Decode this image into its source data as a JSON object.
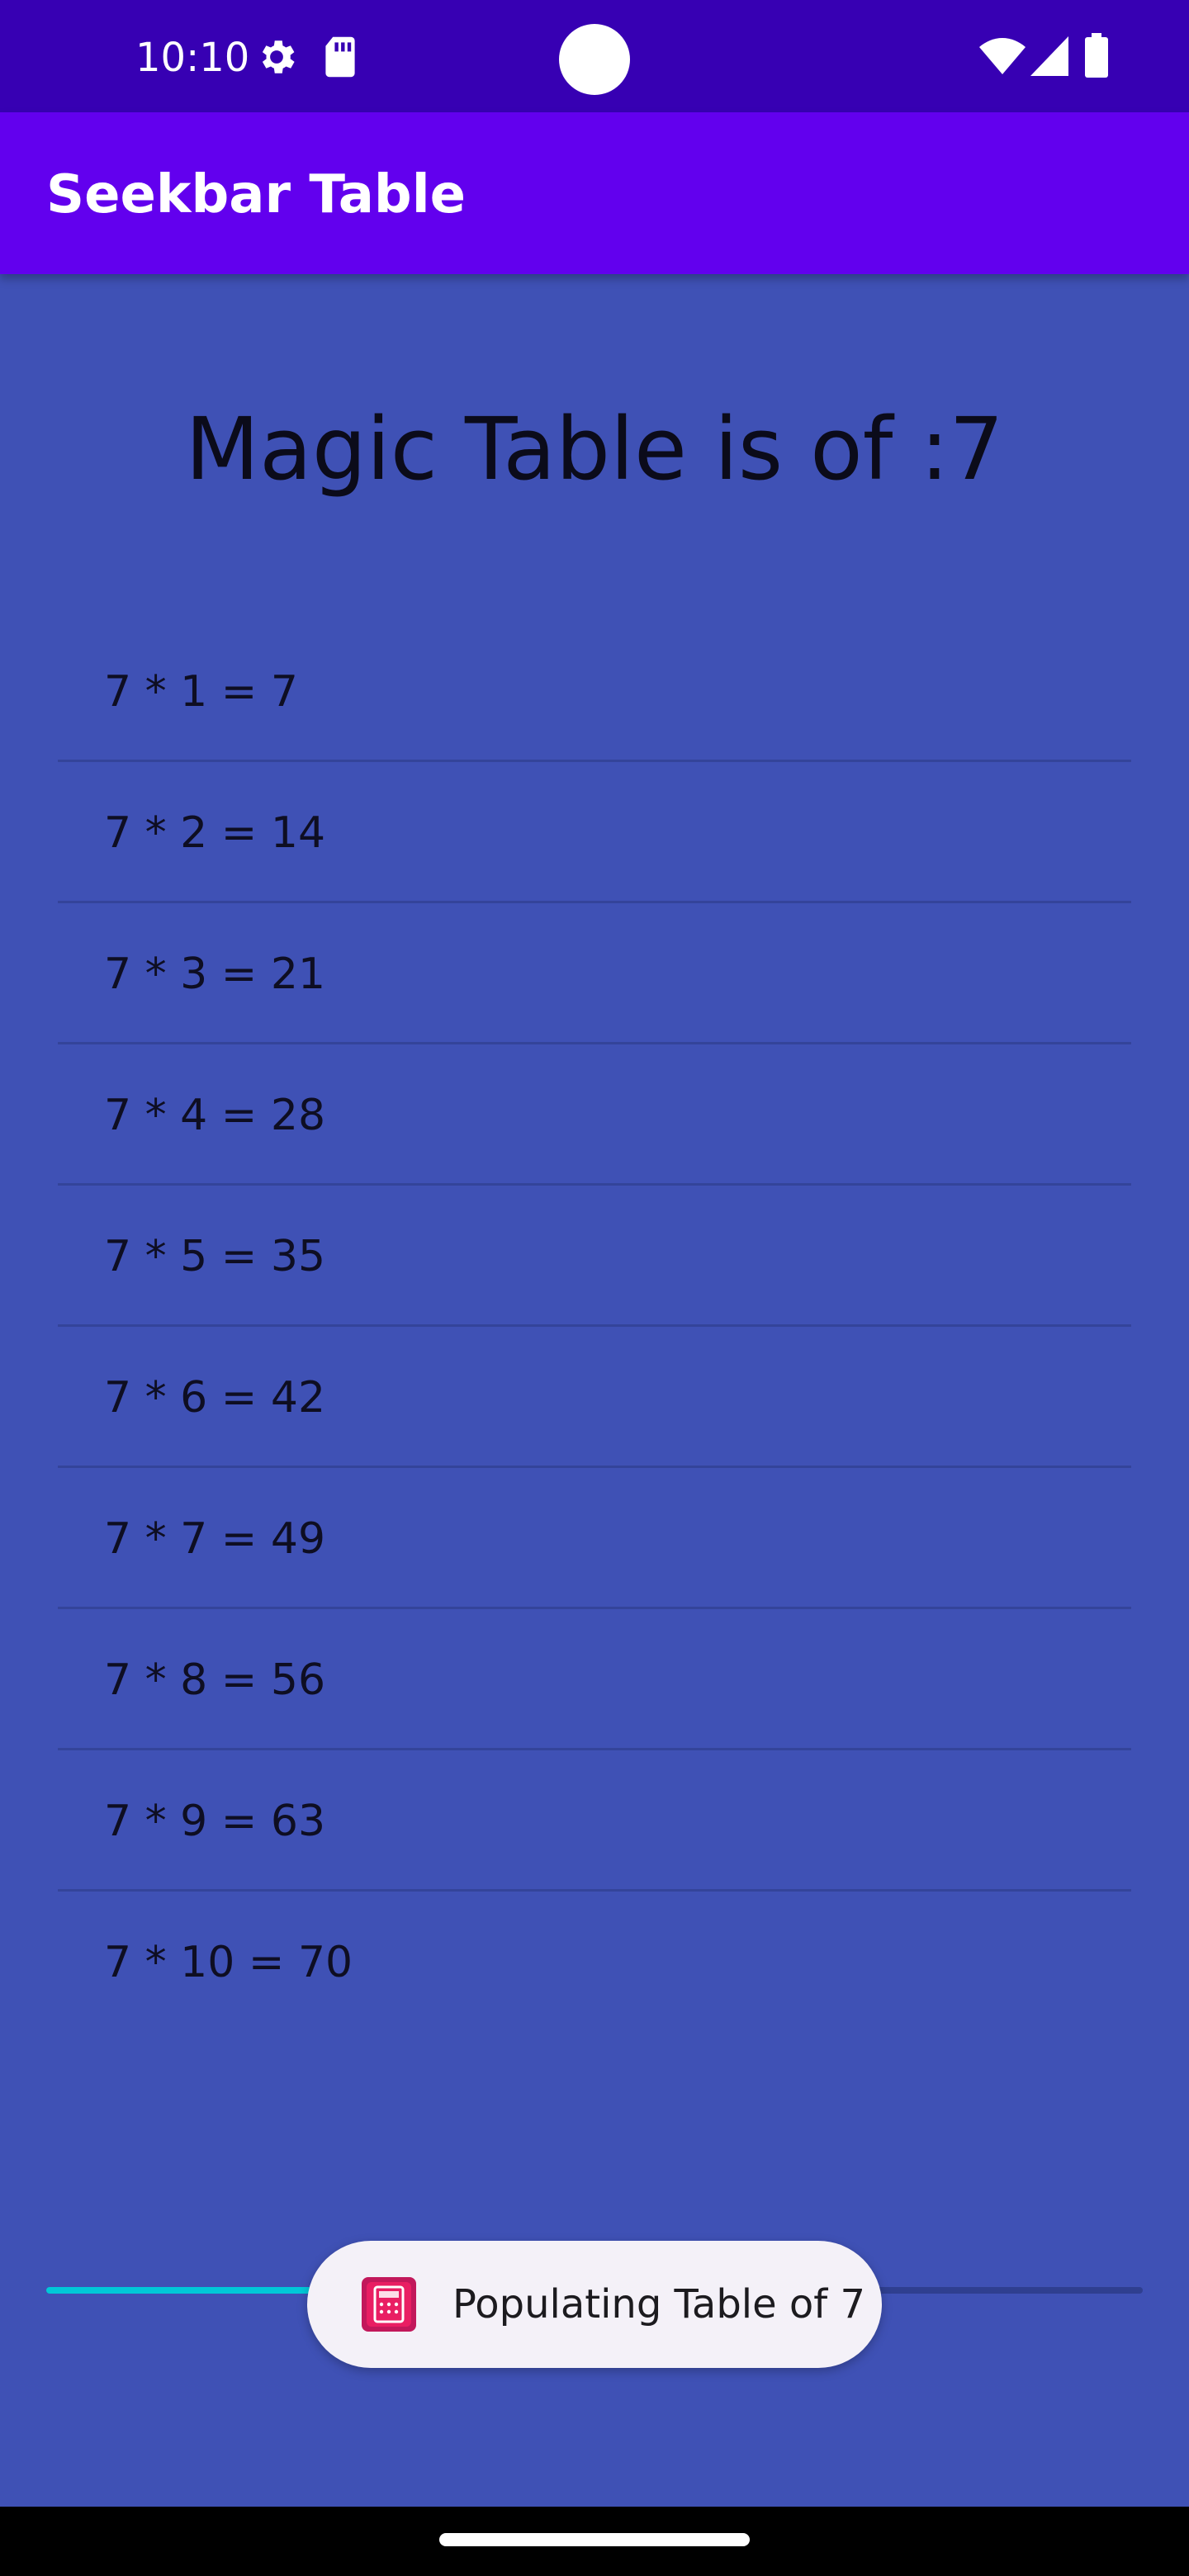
{
  "status_bar": {
    "time": "10:10",
    "icons_left": [
      "settings-gear-icon",
      "sd-card-icon"
    ],
    "icons_right": [
      "wifi-icon",
      "cell-signal-icon",
      "battery-icon"
    ]
  },
  "app_bar": {
    "title": "Seekbar Table"
  },
  "heading": "Magic Table is of :7",
  "table_rows": [
    "7 * 1 = 7",
    "7 * 2 = 14",
    "7 * 3 = 21",
    "7 * 4 = 28",
    "7 * 5 = 35",
    "7 * 6 = 42",
    "7 * 7 = 49",
    "7 * 8 = 56",
    "7 * 9 = 63",
    "7 * 10 = 70"
  ],
  "seekbar": {
    "value": 7,
    "max": 20
  },
  "toast": {
    "text": "Populating Table of 7",
    "icon": "app-calculator-icon"
  },
  "colors": {
    "status_bar": "#3700B3",
    "app_bar": "#6200EE",
    "background": "#3F51B5",
    "seekbar_progress": "#00C8D8"
  }
}
